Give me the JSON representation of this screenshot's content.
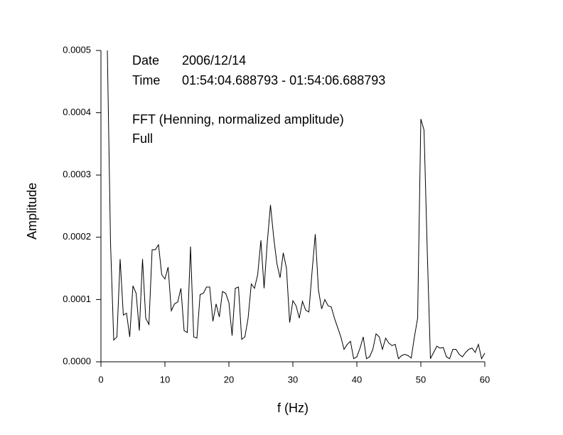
{
  "chart_data": {
    "type": "line",
    "xlabel": "f (Hz)",
    "ylabel": "Amplitude",
    "annotations": [
      {
        "label": "Date",
        "text": "2006/12/14"
      },
      {
        "label": "Time",
        "text": "01:54:04.688793 - 01:54:06.688793"
      },
      {
        "text": "FFT (Henning, normalized amplitude)"
      },
      {
        "text": "Full"
      }
    ],
    "x": [
      1,
      1.5,
      2,
      2.5,
      3,
      3.5,
      4,
      4.5,
      5,
      5.5,
      6,
      6.5,
      7,
      7.5,
      8,
      8.5,
      9,
      9.5,
      10,
      10.5,
      11,
      11.5,
      12,
      12.5,
      13,
      13.5,
      14,
      14.5,
      15,
      15.5,
      16,
      16.5,
      17,
      17.5,
      18,
      18.5,
      19,
      19.5,
      20,
      20.5,
      21,
      21.5,
      22,
      22.5,
      23,
      23.5,
      24,
      24.5,
      25,
      25.5,
      26,
      26.5,
      27,
      27.5,
      28,
      28.5,
      29,
      29.5,
      30,
      30.5,
      31,
      31.5,
      32,
      32.5,
      33,
      33.5,
      34,
      34.5,
      35,
      35.5,
      36,
      36.5,
      37,
      37.5,
      38,
      38.5,
      39,
      39.5,
      40,
      40.5,
      41,
      41.5,
      42,
      42.5,
      43,
      43.5,
      44,
      44.5,
      45,
      45.5,
      46,
      46.5,
      47,
      47.5,
      48,
      48.5,
      49,
      49.5,
      50,
      50.5,
      51,
      51.5,
      52,
      52.5,
      53,
      53.5,
      54,
      54.5,
      55,
      55.5,
      56,
      56.5,
      57,
      57.5,
      58,
      58.5,
      59,
      59.5,
      60
    ],
    "series": [
      {
        "color": "#000000",
        "values": [
          0.0005,
          0.00019,
          3.5e-05,
          4e-05,
          0.000165,
          7.5e-05,
          7.8e-05,
          4e-05,
          0.000122,
          0.00011,
          5e-05,
          0.000165,
          7e-05,
          6e-05,
          0.00018,
          0.00018,
          0.000188,
          0.00014,
          0.000133,
          0.000152,
          8.2e-05,
          9.3e-05,
          9.6e-05,
          0.000118,
          5e-05,
          4.7e-05,
          0.000185,
          4e-05,
          3.8e-05,
          0.000108,
          0.00011,
          0.00012,
          0.00012,
          6.5e-05,
          9.3e-05,
          7.2e-05,
          0.000113,
          0.00011,
          9.5e-05,
          4.2e-05,
          0.000118,
          0.00012,
          3.6e-05,
          4e-05,
          7e-05,
          0.000125,
          0.000118,
          0.00014,
          0.000195,
          0.000118,
          0.000192,
          0.000252,
          0.0002,
          0.000158,
          0.000135,
          0.000175,
          0.00015,
          6.3e-05,
          9.8e-05,
          9e-05,
          7e-05,
          9.7e-05,
          8.3e-05,
          8e-05,
          0.000145,
          0.000205,
          0.000115,
          8.5e-05,
          0.0001,
          9e-05,
          8.8e-05,
          7e-05,
          5.5e-05,
          4e-05,
          2e-05,
          2.8e-05,
          3.3e-05,
          5e-06,
          8e-06,
          2.2e-05,
          4e-05,
          5e-06,
          8e-06,
          2e-05,
          4.5e-05,
          4e-05,
          2e-05,
          3.8e-05,
          3e-05,
          2.6e-05,
          2.8e-05,
          5e-06,
          1e-05,
          1.2e-05,
          1e-05,
          6e-06,
          4e-05,
          7e-05,
          0.00039,
          0.000372,
          0.00018,
          5e-06,
          1.5e-05,
          2.5e-05,
          2.2e-05,
          2.3e-05,
          8e-06,
          5e-06,
          2e-05,
          2e-05,
          1.2e-05,
          8e-06,
          1.5e-05,
          2e-05,
          2.2e-05,
          1.5e-05,
          2.8e-05,
          5e-06,
          1.4e-05
        ]
      }
    ],
    "xlim": [
      0,
      60
    ],
    "xticks": [
      0,
      10,
      20,
      30,
      40,
      50,
      60
    ],
    "ylim": [
      0,
      0.0005
    ],
    "yticks": [
      {
        "value": 0,
        "label": "0.0000"
      },
      {
        "value": 0.0001,
        "label": "0.0001"
      },
      {
        "value": 0.0002,
        "label": "0.0002"
      },
      {
        "value": 0.0003,
        "label": "0.0003"
      },
      {
        "value": 0.0004,
        "label": "0.0004"
      },
      {
        "value": 0.0005,
        "label": "0.0005"
      }
    ],
    "grid": false
  }
}
